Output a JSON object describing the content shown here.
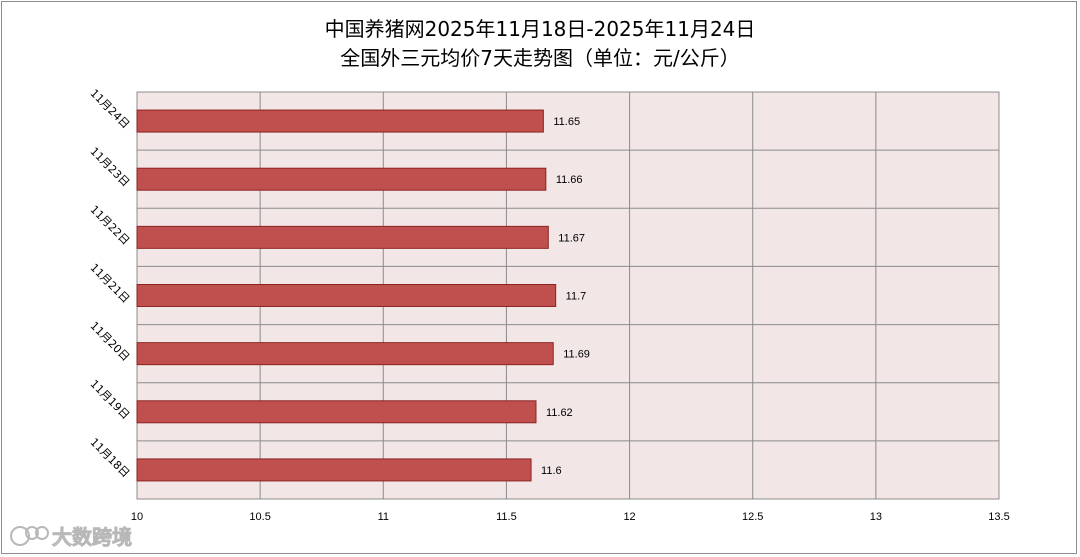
{
  "chart_data": {
    "type": "bar",
    "orientation": "horizontal",
    "title": "中国养猪网2025年11月18日-2025年11月24日",
    "subtitle": "全国外三元均价7天走势图（单位：元/公斤）",
    "categories": [
      "11月24日",
      "11月23日",
      "11月22日",
      "11月21日",
      "11月20日",
      "11月19日",
      "11月18日"
    ],
    "values": [
      11.65,
      11.66,
      11.67,
      11.7,
      11.69,
      11.62,
      11.6
    ],
    "value_labels": [
      "11.65",
      "11.66",
      "11.67",
      "11.7",
      "11.69",
      "11.62",
      "11.6"
    ],
    "xlim": [
      10,
      13.5
    ],
    "xticks": [
      10,
      10.5,
      11,
      11.5,
      12,
      12.5,
      13,
      13.5
    ],
    "xtick_labels": [
      "10",
      "10.5",
      "11",
      "11.5",
      "12",
      "12.5",
      "13",
      "13.5"
    ],
    "grid": true,
    "colors": {
      "bar_fill": "#c0504d",
      "bar_stroke": "#8b2423",
      "plot_background": "#f2e6e6",
      "grid": "#8c8c8c"
    }
  },
  "watermark": {
    "text": "大数跨境",
    "icon": "chat-bubble-logo-icon"
  }
}
